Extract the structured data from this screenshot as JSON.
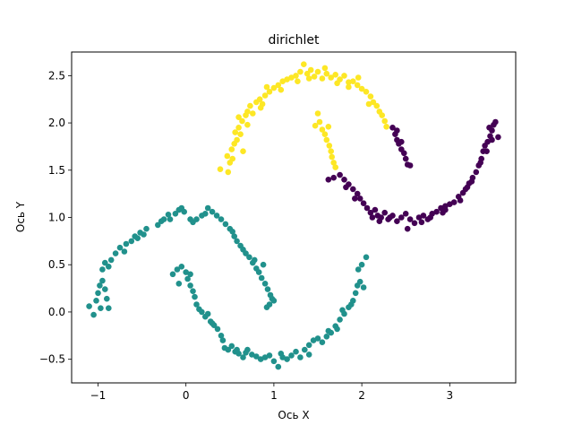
{
  "chart_data": {
    "type": "scatter",
    "title": "dirichlet",
    "xlabel": "Ось X",
    "ylabel": "Ось Y",
    "xlim": [
      -1.3,
      3.75
    ],
    "ylim": [
      -0.75,
      2.75
    ],
    "x_ticks": [
      -1,
      0,
      1,
      2,
      3
    ],
    "y_ticks": [
      -0.5,
      0.0,
      0.5,
      1.0,
      1.5,
      2.0,
      2.5
    ],
    "x_tick_labels": [
      "−1",
      "0",
      "1",
      "2",
      "3"
    ],
    "y_tick_labels": [
      "−0.5",
      "0.0",
      "0.5",
      "1.0",
      "1.5",
      "2.0",
      "2.5"
    ],
    "grid": false,
    "legend": false,
    "colors": {
      "cluster_yellow": "#fde725",
      "cluster_teal": "#21918c",
      "cluster_purple": "#440154"
    },
    "series": [
      {
        "color": "#fde725",
        "points": [
          [
            0.39,
            1.51
          ],
          [
            0.48,
            1.48
          ],
          [
            0.5,
            1.58
          ],
          [
            0.53,
            1.62
          ],
          [
            0.52,
            1.72
          ],
          [
            0.55,
            1.78
          ],
          [
            0.58,
            1.82
          ],
          [
            0.56,
            1.9
          ],
          [
            0.6,
            1.95
          ],
          [
            0.62,
            1.88
          ],
          [
            0.64,
            2.02
          ],
          [
            0.6,
            2.06
          ],
          [
            0.68,
            2.08
          ],
          [
            0.7,
            2.12
          ],
          [
            0.73,
            2.18
          ],
          [
            0.76,
            2.1
          ],
          [
            0.8,
            2.22
          ],
          [
            0.84,
            2.25
          ],
          [
            0.87,
            2.2
          ],
          [
            0.9,
            2.29
          ],
          [
            0.95,
            2.33
          ],
          [
            1.0,
            2.37
          ],
          [
            1.05,
            2.4
          ],
          [
            1.1,
            2.44
          ],
          [
            1.15,
            2.46
          ],
          [
            1.2,
            2.48
          ],
          [
            1.25,
            2.5
          ],
          [
            1.3,
            2.54
          ],
          [
            1.34,
            2.62
          ],
          [
            1.38,
            2.52
          ],
          [
            1.42,
            2.56
          ],
          [
            1.46,
            2.49
          ],
          [
            1.5,
            2.54
          ],
          [
            1.55,
            2.47
          ],
          [
            1.6,
            2.52
          ],
          [
            1.65,
            2.48
          ],
          [
            1.7,
            2.51
          ],
          [
            1.75,
            2.46
          ],
          [
            1.8,
            2.5
          ],
          [
            1.85,
            2.43
          ],
          [
            1.9,
            2.44
          ],
          [
            1.95,
            2.4
          ],
          [
            2.0,
            2.36
          ],
          [
            2.05,
            2.33
          ],
          [
            2.1,
            2.28
          ],
          [
            2.13,
            2.22
          ],
          [
            2.17,
            2.18
          ],
          [
            2.2,
            2.12
          ],
          [
            2.23,
            2.08
          ],
          [
            2.26,
            2.02
          ],
          [
            2.28,
            1.96
          ],
          [
            1.52,
            2.01
          ],
          [
            1.55,
            1.93
          ],
          [
            1.58,
            1.88
          ],
          [
            1.6,
            1.82
          ],
          [
            1.63,
            1.76
          ],
          [
            1.65,
            1.7
          ],
          [
            1.66,
            1.64
          ],
          [
            1.68,
            1.58
          ],
          [
            1.7,
            1.53
          ],
          [
            1.5,
            2.1
          ],
          [
            1.47,
            1.97
          ],
          [
            1.62,
            1.96
          ],
          [
            0.65,
            1.7
          ],
          [
            0.92,
            2.38
          ],
          [
            1.08,
            2.35
          ],
          [
            1.27,
            2.44
          ],
          [
            1.58,
            2.58
          ],
          [
            1.72,
            2.42
          ],
          [
            1.96,
            2.48
          ],
          [
            2.08,
            2.2
          ],
          [
            1.4,
            2.47
          ],
          [
            0.7,
            1.98
          ],
          [
            0.47,
            1.65
          ],
          [
            1.85,
            2.38
          ],
          [
            0.85,
            2.16
          ]
        ]
      },
      {
        "color": "#21918c",
        "points": [
          [
            -1.05,
            -0.03
          ],
          [
            -1.02,
            0.12
          ],
          [
            -1.0,
            0.2
          ],
          [
            -0.98,
            0.28
          ],
          [
            -0.95,
            0.33
          ],
          [
            -0.92,
            0.24
          ],
          [
            -0.9,
            0.14
          ],
          [
            -0.88,
            0.04
          ],
          [
            -0.95,
            0.45
          ],
          [
            -0.92,
            0.52
          ],
          [
            -0.88,
            0.48
          ],
          [
            -0.85,
            0.55
          ],
          [
            -0.8,
            0.62
          ],
          [
            -0.75,
            0.68
          ],
          [
            -0.7,
            0.64
          ],
          [
            -0.68,
            0.72
          ],
          [
            -0.62,
            0.75
          ],
          [
            -0.58,
            0.8
          ],
          [
            -0.55,
            0.78
          ],
          [
            -0.52,
            0.84
          ],
          [
            -0.48,
            0.82
          ],
          [
            -0.45,
            0.88
          ],
          [
            -0.32,
            0.92
          ],
          [
            -0.28,
            0.96
          ],
          [
            -0.25,
            0.98
          ],
          [
            -0.2,
            1.03
          ],
          [
            -0.18,
            0.98
          ],
          [
            -0.12,
            1.04
          ],
          [
            -0.08,
            1.08
          ],
          [
            -0.05,
            1.1
          ],
          [
            -0.02,
            1.06
          ],
          [
            0.05,
            0.98
          ],
          [
            0.08,
            0.95
          ],
          [
            0.12,
            0.98
          ],
          [
            0.18,
            1.02
          ],
          [
            0.22,
            1.04
          ],
          [
            0.25,
            1.1
          ],
          [
            0.3,
            1.06
          ],
          [
            0.35,
            1.02
          ],
          [
            0.4,
            0.98
          ],
          [
            0.45,
            0.93
          ],
          [
            0.5,
            0.88
          ],
          [
            0.53,
            0.85
          ],
          [
            0.55,
            0.8
          ],
          [
            0.58,
            0.75
          ],
          [
            0.62,
            0.7
          ],
          [
            0.65,
            0.66
          ],
          [
            0.68,
            0.62
          ],
          [
            0.72,
            0.58
          ],
          [
            0.76,
            0.52
          ],
          [
            0.8,
            0.46
          ],
          [
            0.83,
            0.42
          ],
          [
            0.86,
            0.36
          ],
          [
            0.9,
            0.3
          ],
          [
            0.93,
            0.24
          ],
          [
            0.96,
            0.18
          ],
          [
            0.98,
            0.14
          ],
          [
            1.0,
            0.12
          ],
          [
            0.92,
            0.05
          ],
          [
            0.95,
            0.08
          ],
          [
            0.88,
            0.5
          ],
          [
            0.78,
            0.55
          ],
          [
            -1.1,
            0.06
          ],
          [
            -0.97,
            0.04
          ],
          [
            -0.15,
            0.4
          ],
          [
            -0.1,
            0.45
          ],
          [
            -0.05,
            0.48
          ],
          [
            0.0,
            0.42
          ],
          [
            0.02,
            0.35
          ],
          [
            0.05,
            0.28
          ],
          [
            0.08,
            0.22
          ],
          [
            0.1,
            0.16
          ],
          [
            0.12,
            0.08
          ],
          [
            0.15,
            0.03
          ],
          [
            0.18,
            0.0
          ],
          [
            0.22,
            -0.05
          ],
          [
            0.25,
            -0.02
          ],
          [
            0.28,
            -0.1
          ],
          [
            0.32,
            -0.14
          ],
          [
            0.36,
            -0.18
          ],
          [
            0.4,
            -0.25
          ],
          [
            0.42,
            -0.3
          ],
          [
            0.44,
            -0.38
          ],
          [
            0.48,
            -0.4
          ],
          [
            0.52,
            -0.36
          ],
          [
            0.56,
            -0.42
          ],
          [
            0.6,
            -0.44
          ],
          [
            0.65,
            -0.48
          ],
          [
            0.7,
            -0.4
          ],
          [
            0.75,
            -0.45
          ],
          [
            0.8,
            -0.47
          ],
          [
            0.85,
            -0.5
          ],
          [
            0.9,
            -0.48
          ],
          [
            0.95,
            -0.46
          ],
          [
            1.0,
            -0.52
          ],
          [
            1.05,
            -0.58
          ],
          [
            1.1,
            -0.48
          ],
          [
            1.15,
            -0.5
          ],
          [
            1.2,
            -0.46
          ],
          [
            1.25,
            -0.42
          ],
          [
            1.3,
            -0.48
          ],
          [
            1.35,
            -0.4
          ],
          [
            1.4,
            -0.35
          ],
          [
            1.45,
            -0.3
          ],
          [
            1.5,
            -0.28
          ],
          [
            1.55,
            -0.32
          ],
          [
            1.6,
            -0.26
          ],
          [
            1.65,
            -0.22
          ],
          [
            1.7,
            -0.15
          ],
          [
            1.75,
            -0.08
          ],
          [
            1.8,
            -0.02
          ],
          [
            1.85,
            0.05
          ],
          [
            1.9,
            0.12
          ],
          [
            1.93,
            0.2
          ],
          [
            1.95,
            0.28
          ],
          [
            1.98,
            0.32
          ],
          [
            2.02,
            0.26
          ],
          [
            1.96,
            0.45
          ],
          [
            2.0,
            0.5
          ],
          [
            2.05,
            0.58
          ],
          [
            1.78,
            0.02
          ],
          [
            1.62,
            -0.2
          ],
          [
            1.08,
            -0.44
          ],
          [
            0.58,
            -0.4
          ],
          [
            0.3,
            -0.12
          ],
          [
            0.05,
            0.4
          ],
          [
            -0.08,
            0.3
          ],
          [
            1.88,
            0.08
          ],
          [
            1.72,
            -0.18
          ],
          [
            0.68,
            -0.43
          ],
          [
            1.4,
            -0.45
          ]
        ]
      },
      {
        "color": "#440154",
        "points": [
          [
            2.35,
            1.95
          ],
          [
            2.38,
            1.88
          ],
          [
            2.4,
            1.82
          ],
          [
            2.42,
            1.78
          ],
          [
            2.45,
            1.72
          ],
          [
            2.48,
            1.68
          ],
          [
            2.5,
            1.62
          ],
          [
            2.52,
            1.56
          ],
          [
            2.55,
            1.55
          ],
          [
            2.4,
            1.92
          ],
          [
            1.75,
            1.45
          ],
          [
            1.8,
            1.4
          ],
          [
            1.85,
            1.35
          ],
          [
            1.9,
            1.3
          ],
          [
            1.95,
            1.25
          ],
          [
            1.98,
            1.2
          ],
          [
            2.02,
            1.15
          ],
          [
            2.06,
            1.1
          ],
          [
            2.1,
            1.05
          ],
          [
            2.15,
            1.08
          ],
          [
            2.18,
            1.02
          ],
          [
            2.22,
            1.0
          ],
          [
            2.26,
            1.05
          ],
          [
            2.3,
            0.98
          ],
          [
            2.35,
            1.02
          ],
          [
            2.4,
            0.96
          ],
          [
            2.45,
            1.0
          ],
          [
            2.5,
            1.04
          ],
          [
            2.55,
            0.98
          ],
          [
            2.6,
            0.94
          ],
          [
            2.65,
            1.0
          ],
          [
            2.7,
            1.02
          ],
          [
            2.75,
            0.98
          ],
          [
            2.8,
            1.04
          ],
          [
            2.85,
            1.06
          ],
          [
            2.9,
            1.1
          ],
          [
            2.95,
            1.12
          ],
          [
            3.0,
            1.14
          ],
          [
            3.05,
            1.16
          ],
          [
            3.1,
            1.22
          ],
          [
            3.15,
            1.26
          ],
          [
            3.18,
            1.3
          ],
          [
            3.22,
            1.36
          ],
          [
            3.26,
            1.42
          ],
          [
            3.3,
            1.48
          ],
          [
            3.33,
            1.55
          ],
          [
            3.36,
            1.62
          ],
          [
            3.38,
            1.7
          ],
          [
            3.4,
            1.76
          ],
          [
            3.43,
            1.8
          ],
          [
            3.46,
            1.86
          ],
          [
            3.48,
            1.92
          ],
          [
            3.5,
            1.98
          ],
          [
            3.52,
            2.01
          ],
          [
            3.55,
            1.85
          ],
          [
            3.45,
            1.95
          ],
          [
            3.42,
            1.7
          ],
          [
            3.25,
            1.38
          ],
          [
            3.12,
            1.18
          ],
          [
            2.92,
            1.05
          ],
          [
            2.68,
            0.95
          ],
          [
            2.52,
            0.88
          ],
          [
            2.32,
            1.0
          ],
          [
            2.12,
            1.0
          ],
          [
            1.92,
            1.2
          ],
          [
            1.82,
            1.32
          ],
          [
            1.62,
            1.4
          ],
          [
            1.68,
            1.42
          ],
          [
            3.2,
            1.32
          ],
          [
            3.35,
            1.58
          ],
          [
            2.78,
            1.0
          ],
          [
            2.95,
            1.08
          ],
          [
            3.48,
            1.82
          ],
          [
            2.45,
            1.8
          ],
          [
            2.2,
            0.96
          ]
        ]
      }
    ]
  }
}
